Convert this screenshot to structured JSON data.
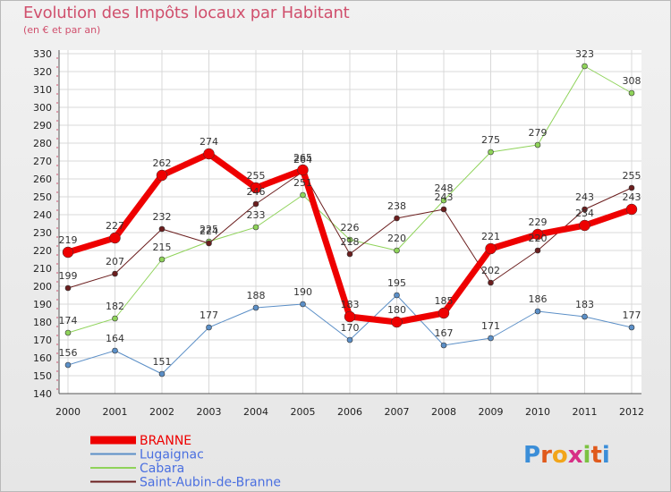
{
  "chart_data": {
    "type": "line",
    "title": "Evolution des Impôts locaux par Habitant",
    "subtitle": "(en € et par an)",
    "x": [
      "2000",
      "2001",
      "2002",
      "2003",
      "2004",
      "2005",
      "2006",
      "2007",
      "2008",
      "2009",
      "2010",
      "2011",
      "2012"
    ],
    "ylim": [
      140,
      330
    ],
    "yticks": [
      140,
      150,
      160,
      170,
      180,
      190,
      200,
      210,
      220,
      230,
      240,
      250,
      260,
      270,
      280,
      290,
      300,
      310,
      320,
      330
    ],
    "series": [
      {
        "name": "Lugaignac",
        "color": "#5b8fc7",
        "values": [
          156,
          164,
          151,
          177,
          188,
          190,
          170,
          195,
          167,
          171,
          186,
          183,
          177
        ]
      },
      {
        "name": "Cabara",
        "color": "#8fd35a",
        "values": [
          174,
          182,
          215,
          225,
          233,
          251,
          226,
          220,
          248,
          275,
          279,
          323,
          308
        ]
      },
      {
        "name": "Saint-Aubin-de-Branne",
        "color": "#6b1e1e",
        "values": [
          199,
          207,
          232,
          224,
          246,
          264,
          218,
          238,
          243,
          202,
          220,
          243,
          255
        ]
      },
      {
        "name": "BRANNE",
        "color": "#ee0000",
        "values": [
          219,
          227,
          262,
          274,
          255,
          265,
          183,
          180,
          185,
          221,
          229,
          234,
          243
        ]
      }
    ],
    "legend": [
      {
        "name": "BRANNE",
        "color": "#ee0000"
      },
      {
        "name": "Lugaignac",
        "color": "#5b8fc7"
      },
      {
        "name": "Cabara",
        "color": "#8fd35a"
      },
      {
        "name": "Saint-Aubin-de-Branne",
        "color": "#6b1e1e"
      }
    ]
  },
  "brand": "Proxiti"
}
